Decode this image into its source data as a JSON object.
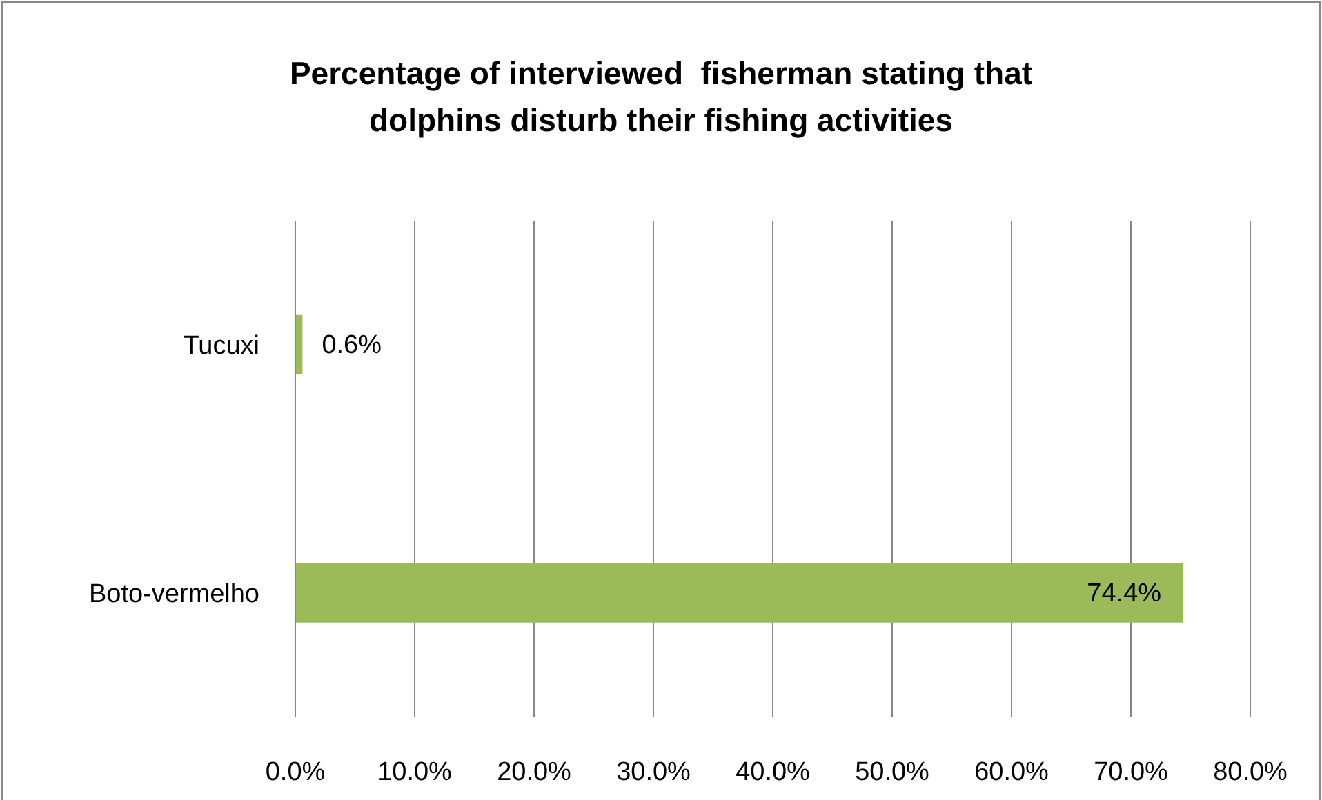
{
  "chart_data": {
    "type": "bar",
    "orientation": "horizontal",
    "title": "Percentage of interviewed  fisherman stating that dolphins disturb their fishing activities",
    "categories": [
      "Tucuxi",
      "Boto-vermelho"
    ],
    "values": [
      0.6,
      74.4
    ],
    "color": "#9bbb59",
    "value_labels": [
      "0.6%",
      "74.4%"
    ],
    "xlim": [
      0,
      80
    ],
    "xticks": [
      {
        "value": 0,
        "label": "0.0%"
      },
      {
        "value": 10,
        "label": "10.0%"
      },
      {
        "value": 20,
        "label": "20.0%"
      },
      {
        "value": 30,
        "label": "30.0%"
      },
      {
        "value": 40,
        "label": "40.0%"
      },
      {
        "value": 50,
        "label": "50.0%"
      },
      {
        "value": 60,
        "label": "60.0%"
      },
      {
        "value": 70,
        "label": "70.0%"
      },
      {
        "value": 80,
        "label": "80.0%"
      }
    ],
    "grid": "x",
    "legend": false
  }
}
